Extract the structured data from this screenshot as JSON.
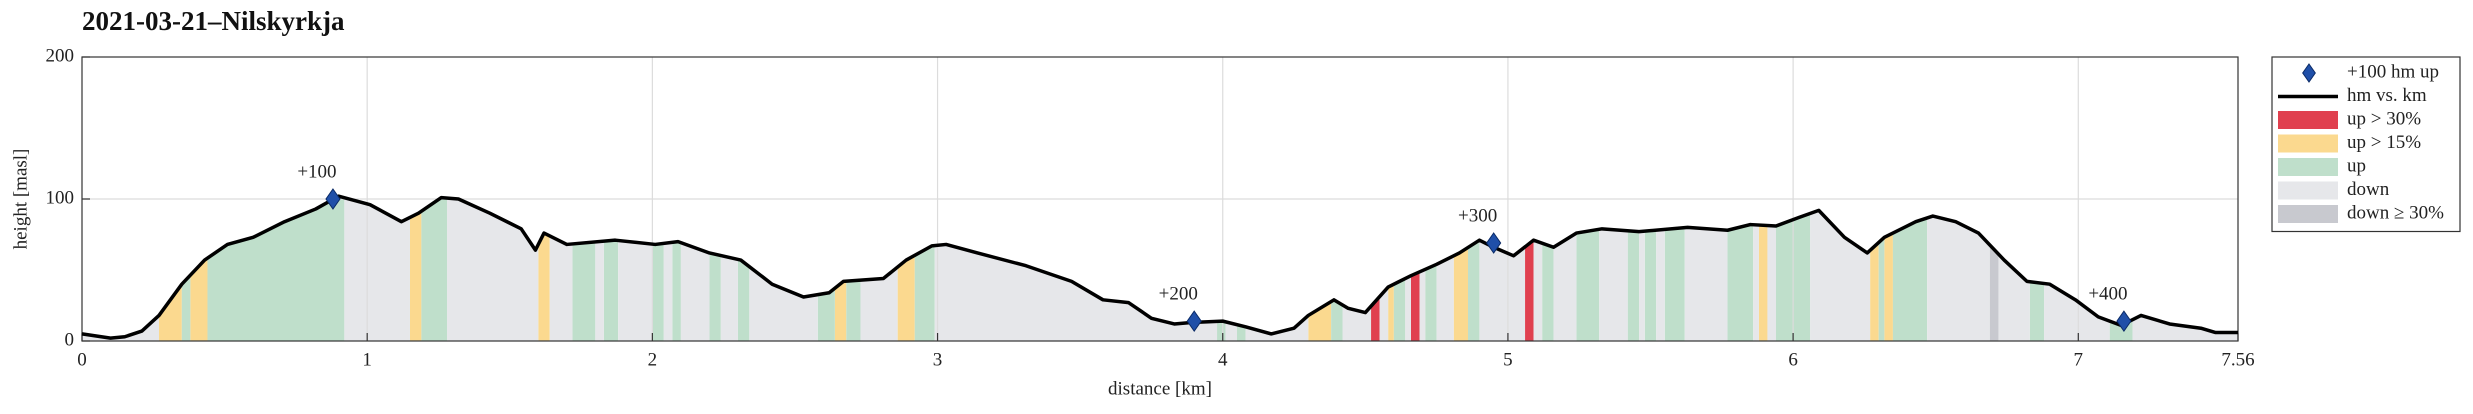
{
  "chart_data": {
    "type": "line",
    "title": "2021-03-21–Nilskyrkja",
    "xlabel": "distance [km]",
    "ylabel": "height [masl]",
    "xlim": [
      0,
      7.56
    ],
    "ylim": [
      0,
      200
    ],
    "xticks": [
      0,
      1,
      2,
      3,
      4,
      5,
      6,
      7,
      7.56
    ],
    "yticks": [
      0,
      100,
      200
    ],
    "grid": true,
    "legend": "outside-right",
    "series": [
      {
        "name": "hm vs. km",
        "color": "#000000",
        "x": [
          0,
          0.1,
          0.15,
          0.21,
          0.27,
          0.35,
          0.43,
          0.51,
          0.6,
          0.71,
          0.82,
          0.9,
          1.01,
          1.12,
          1.18,
          1.26,
          1.32,
          1.43,
          1.54,
          1.59,
          1.62,
          1.7,
          1.87,
          2.01,
          2.09,
          2.2,
          2.31,
          2.42,
          2.53,
          2.62,
          2.67,
          2.81,
          2.89,
          2.98,
          3.03,
          3.14,
          3.31,
          3.47,
          3.58,
          3.67,
          3.75,
          3.83,
          3.89,
          4.0,
          4.08,
          4.17,
          4.25,
          4.3,
          4.39,
          4.44,
          4.5,
          4.58,
          4.66,
          4.75,
          4.83,
          4.9,
          4.95,
          5.02,
          5.09,
          5.16,
          5.24,
          5.33,
          5.46,
          5.63,
          5.77,
          5.85,
          5.94,
          6.02,
          6.09,
          6.18,
          6.26,
          6.32,
          6.43,
          6.49,
          6.57,
          6.65,
          6.74,
          6.82,
          6.9,
          6.99,
          7.07,
          7.15,
          7.22,
          7.32,
          7.43,
          7.48,
          7.56
        ],
        "values": [
          5,
          2,
          3,
          7,
          18,
          40,
          57,
          68,
          73,
          84,
          93,
          102,
          96,
          84,
          90,
          101,
          100,
          90,
          79,
          64,
          76,
          68,
          71,
          68,
          70,
          62,
          57,
          40,
          31,
          34,
          42,
          44,
          57,
          67,
          68,
          62,
          53,
          42,
          29,
          27,
          16,
          12,
          13,
          14,
          10,
          5,
          9,
          18,
          29,
          23,
          20,
          38,
          46,
          54,
          62,
          71,
          66,
          60,
          71,
          66,
          76,
          79,
          77,
          80,
          78,
          82,
          81,
          87,
          92,
          73,
          62,
          73,
          84,
          88,
          84,
          76,
          57,
          42,
          40,
          29,
          17,
          11,
          18,
          12,
          9,
          6,
          6
        ]
      }
    ],
    "markers": {
      "name": "+100 hm up",
      "color": "#1f4fa8",
      "x": [
        0.88,
        3.9,
        4.95,
        7.16
      ],
      "values": [
        100,
        14,
        69,
        14
      ],
      "labels": [
        "+100",
        "+200",
        "+300",
        "+400"
      ]
    },
    "bands": [
      {
        "name": "up > 30%",
        "color": "#e0404f",
        "ranges": [
          [
            4.52,
            4.55
          ],
          [
            4.66,
            4.69
          ],
          [
            5.06,
            5.09
          ]
        ]
      },
      {
        "name": "up > 15%",
        "color": "#fbd98f",
        "ranges": [
          [
            0.27,
            0.35
          ],
          [
            0.38,
            0.44
          ],
          [
            1.15,
            1.19
          ],
          [
            1.6,
            1.64
          ],
          [
            2.64,
            2.68
          ],
          [
            2.86,
            2.92
          ],
          [
            4.3,
            4.38
          ],
          [
            4.58,
            4.6
          ],
          [
            4.81,
            4.86
          ],
          [
            5.88,
            5.91
          ],
          [
            6.27,
            6.3
          ],
          [
            6.32,
            6.35
          ]
        ]
      },
      {
        "name": "up",
        "color": "#bfdfcb",
        "ranges": [
          [
            0.35,
            0.38
          ],
          [
            0.44,
            0.92
          ],
          [
            1.19,
            1.28
          ],
          [
            1.72,
            1.8
          ],
          [
            1.83,
            1.88
          ],
          [
            2.0,
            2.04
          ],
          [
            2.07,
            2.1
          ],
          [
            2.2,
            2.24
          ],
          [
            2.3,
            2.34
          ],
          [
            2.58,
            2.64
          ],
          [
            2.68,
            2.73
          ],
          [
            2.92,
            2.99
          ],
          [
            3.98,
            4.01
          ],
          [
            4.05,
            4.08
          ],
          [
            4.38,
            4.42
          ],
          [
            4.6,
            4.64
          ],
          [
            4.71,
            4.75
          ],
          [
            4.86,
            4.9
          ],
          [
            5.12,
            5.16
          ],
          [
            5.24,
            5.32
          ],
          [
            5.42,
            5.46
          ],
          [
            5.48,
            5.52
          ],
          [
            5.55,
            5.62
          ],
          [
            5.77,
            5.86
          ],
          [
            5.94,
            6.06
          ],
          [
            6.3,
            6.32
          ],
          [
            6.35,
            6.47
          ],
          [
            6.83,
            6.88
          ],
          [
            7.11,
            7.19
          ]
        ]
      },
      {
        "name": "down",
        "color": "#e6e7ea",
        "ranges": [
          [
            0,
            0.27
          ],
          [
            0.92,
            1.15
          ],
          [
            1.28,
            1.6
          ],
          [
            1.64,
            1.72
          ],
          [
            1.8,
            1.83
          ],
          [
            1.88,
            2.0
          ],
          [
            2.04,
            2.07
          ],
          [
            2.1,
            2.2
          ],
          [
            2.24,
            2.3
          ],
          [
            2.34,
            2.58
          ],
          [
            2.73,
            2.86
          ],
          [
            2.99,
            3.98
          ],
          [
            4.01,
            4.05
          ],
          [
            4.08,
            4.3
          ],
          [
            4.42,
            4.52
          ],
          [
            4.55,
            4.58
          ],
          [
            4.64,
            4.66
          ],
          [
            4.69,
            4.71
          ],
          [
            4.75,
            4.81
          ],
          [
            4.9,
            5.06
          ],
          [
            5.09,
            5.12
          ],
          [
            5.16,
            5.24
          ],
          [
            5.32,
            5.42
          ],
          [
            5.46,
            5.48
          ],
          [
            5.52,
            5.55
          ],
          [
            5.62,
            5.77
          ],
          [
            5.86,
            5.88
          ],
          [
            5.91,
            5.94
          ],
          [
            6.06,
            6.27
          ],
          [
            6.47,
            6.69
          ],
          [
            6.72,
            6.83
          ],
          [
            6.88,
            7.11
          ],
          [
            7.19,
            7.56
          ]
        ]
      },
      {
        "name": "down ≥ 30%",
        "color": "#c8c9cf",
        "ranges": [
          [
            6.69,
            6.72
          ]
        ]
      }
    ]
  }
}
